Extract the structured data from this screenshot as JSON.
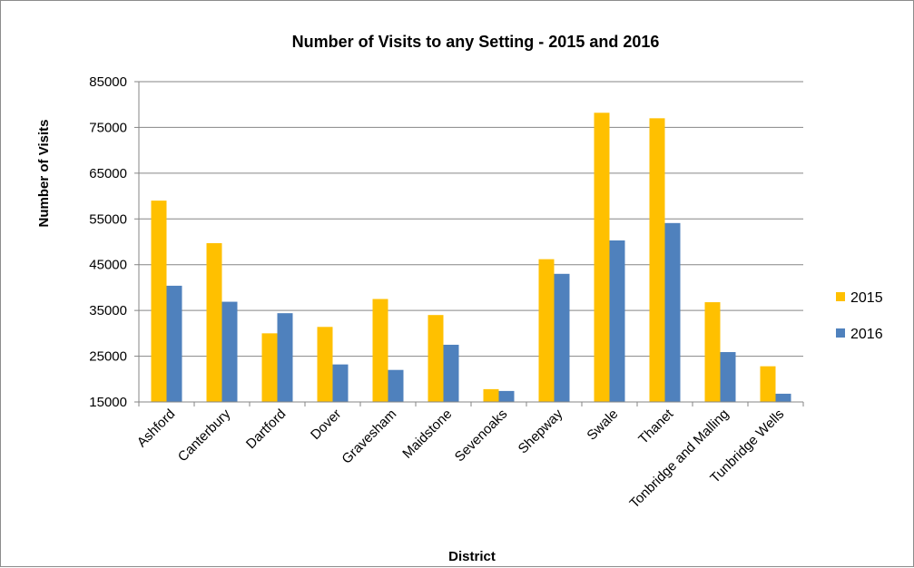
{
  "chart_data": {
    "type": "bar",
    "title": "Number of Visits to any Setting - 2015 and 2016",
    "xlabel": "District",
    "ylabel": "Number of Visits",
    "ylim": [
      15000,
      85000
    ],
    "yticks": [
      15000,
      25000,
      35000,
      45000,
      55000,
      65000,
      75000,
      85000
    ],
    "grid": true,
    "legend_position": "right",
    "categories": [
      "Ashford",
      "Canterbury",
      "Dartford",
      "Dover",
      "Gravesham",
      "Maidstone",
      "Sevenoaks",
      "Shepway",
      "Swale",
      "Thanet",
      "Tonbridge and Malling",
      "Tunbridge Wells"
    ],
    "series": [
      {
        "name": "2015",
        "color": "#FFC000",
        "values": [
          59000,
          49700,
          30000,
          31400,
          37500,
          34000,
          17800,
          46200,
          78200,
          77000,
          36800,
          22800
        ]
      },
      {
        "name": "2016",
        "color": "#4F81BD",
        "values": [
          40400,
          36900,
          34400,
          23200,
          22000,
          27500,
          17400,
          43000,
          50300,
          54100,
          25900,
          16800
        ]
      }
    ]
  }
}
